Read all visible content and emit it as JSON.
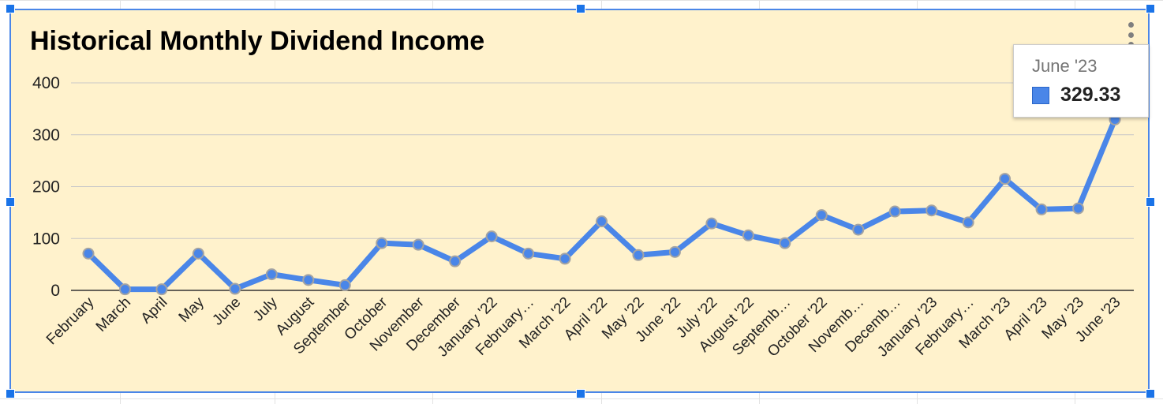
{
  "chart_data": {
    "type": "line",
    "title": "Historical Monthly Dividend Income",
    "xlabel": "",
    "ylabel": "",
    "ylim": [
      0,
      400
    ],
    "yticks": [
      0,
      100,
      200,
      300,
      400
    ],
    "grid": true,
    "legend": "none",
    "categories": [
      "February",
      "March",
      "April",
      "May",
      "June",
      "July",
      "August",
      "September",
      "October",
      "November",
      "December",
      "January '22",
      "February…",
      "March '22",
      "April '22",
      "May '22",
      "June '22",
      "July '22",
      "August '22",
      "Septemb…",
      "October '22",
      "Novemb…",
      "Decemb…",
      "January '23",
      "February…",
      "March '23",
      "April '23",
      "May '23",
      "June '23"
    ],
    "series": [
      {
        "values": [
          71,
          2,
          2,
          71,
          3,
          31,
          20,
          10,
          91,
          88,
          56,
          104,
          71,
          61,
          133,
          68,
          74,
          129,
          106,
          91,
          145,
          117,
          152,
          154,
          131,
          215,
          156,
          158,
          329.33
        ]
      }
    ],
    "colors": {
      "line": "#4a86e8",
      "frame_bg": "#fff2cc",
      "grid": "#c8c8c8",
      "marker_stroke": "#a3a3a3"
    }
  },
  "tooltip": {
    "label": "June '23",
    "value": "329.33"
  },
  "icons": {
    "menu": "more-vert-icon"
  }
}
